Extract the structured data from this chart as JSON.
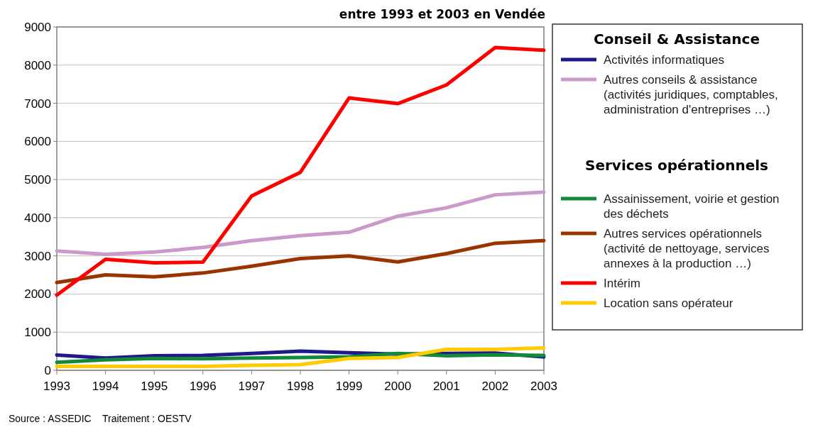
{
  "chart_data": {
    "type": "line",
    "title": "entre 1993 et 2003 en Vendée",
    "categories": [
      "1993",
      "1994",
      "1995",
      "1996",
      "1997",
      "1998",
      "1999",
      "2000",
      "2001",
      "2002",
      "2003"
    ],
    "series": [
      {
        "name": "Activités informatiques",
        "color": "#1f1a8a",
        "values": [
          400,
          320,
          380,
          390,
          440,
          500,
          460,
          425,
          440,
          450,
          350
        ]
      },
      {
        "name": "Autres conseils & assistance (activités juridiques, comptables, administration d'entreprises …)",
        "color": "#cc99cc",
        "values": [
          3130,
          3040,
          3100,
          3220,
          3400,
          3530,
          3620,
          4040,
          4260,
          4600,
          4670
        ]
      },
      {
        "name": "Assainissement, voirie et gestion des déchets",
        "color": "#138a3a",
        "values": [
          210,
          275,
          310,
          300,
          320,
          335,
          355,
          440,
          380,
          405,
          390
        ]
      },
      {
        "name": "Autres services opérationnels (activité de nettoyage, services annexes à la production …)",
        "color": "#993300",
        "values": [
          2300,
          2500,
          2450,
          2550,
          2730,
          2930,
          3000,
          2840,
          3060,
          3330,
          3400
        ]
      },
      {
        "name": "Intérim",
        "color": "#ff0000",
        "values": [
          1970,
          2910,
          2815,
          2835,
          4570,
          5190,
          7140,
          6990,
          7480,
          8460,
          8390
        ]
      },
      {
        "name": "Location sans opérateur",
        "color": "#ffcc00",
        "values": [
          100,
          100,
          100,
          100,
          130,
          150,
          310,
          335,
          550,
          550,
          585
        ]
      }
    ],
    "ylim": [
      0,
      9000
    ],
    "yticks": [
      0,
      1000,
      2000,
      3000,
      4000,
      5000,
      6000,
      7000,
      8000,
      9000
    ],
    "grid": "y",
    "legend": "right",
    "marker": "none",
    "line_style": "solid",
    "annotations": [
      "Conseil & Assistance",
      "Services opérationnels",
      "Source : ASSEDIC    Traitement : OESTV"
    ]
  }
}
